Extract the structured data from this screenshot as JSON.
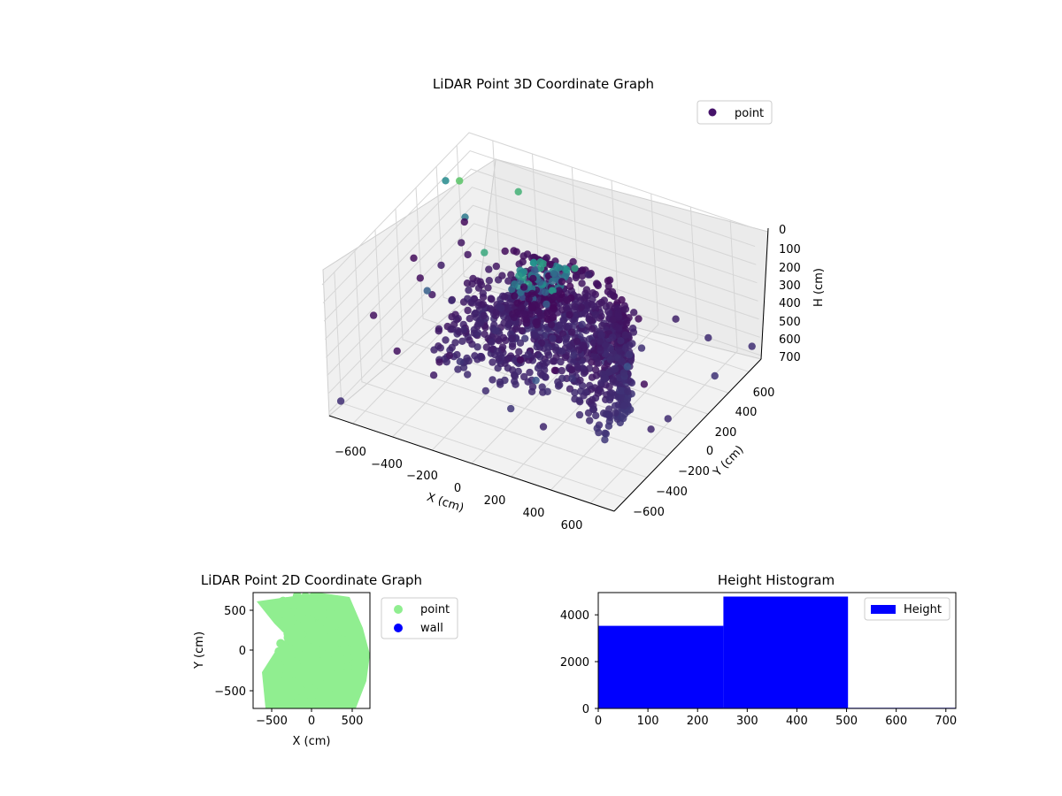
{
  "chart_data": [
    {
      "type": "scatter3d",
      "title": "LiDAR Point 3D Coordinate Graph",
      "xlabel": "X (cm)",
      "ylabel": "Y (cm)",
      "zlabel": "H (cm)",
      "xlim": [
        -720,
        720
      ],
      "ylim": [
        -720,
        720
      ],
      "zlim": [
        0,
        720
      ],
      "z_inverted": true,
      "xticks": [
        "−600",
        "−400",
        "−200",
        "0",
        "200",
        "400",
        "600"
      ],
      "yticks": [
        "−600",
        "−400",
        "−200",
        "0",
        "200",
        "400",
        "600"
      ],
      "zticks": [
        "0",
        "100",
        "200",
        "300",
        "400",
        "500",
        "600",
        "700"
      ],
      "grid": true,
      "colormap": "viridis",
      "legend": {
        "position": "top-right",
        "entries": [
          {
            "label": "point",
            "color": "#46136a"
          }
        ]
      }
    },
    {
      "type": "scatter",
      "title": "LiDAR Point 2D Coordinate Graph",
      "xlabel": "X (cm)",
      "ylabel": "Y (cm)",
      "xlim": [
        -720,
        720
      ],
      "ylim": [
        -720,
        720
      ],
      "xticks": [
        "−500",
        "0",
        "500"
      ],
      "yticks": [
        "500",
        "0",
        "−500"
      ],
      "legend": {
        "position": "right-outside",
        "entries": [
          {
            "label": "point",
            "color": "#90ee90"
          },
          {
            "label": "wall",
            "color": "#0000ff"
          }
        ]
      },
      "series": [
        {
          "name": "point",
          "color": "#90ee90"
        },
        {
          "name": "wall",
          "color": "#0000ff"
        }
      ]
    },
    {
      "type": "bar",
      "title": "Height Histogram",
      "xlabel": "",
      "ylabel": "",
      "xlim": [
        0,
        720
      ],
      "ylim": [
        0,
        4950
      ],
      "xticks": [
        "0",
        "100",
        "200",
        "300",
        "400",
        "500",
        "600",
        "700"
      ],
      "yticks": [
        "0",
        "2000",
        "4000"
      ],
      "bins": [
        {
          "from": 0,
          "to": 252,
          "count": 3530
        },
        {
          "from": 252,
          "to": 503,
          "count": 4780
        },
        {
          "from": 503,
          "to": 720,
          "count": 25
        }
      ],
      "color": "#0000ff",
      "legend": {
        "position": "top-right",
        "entries": [
          {
            "label": "Height",
            "color": "#0000ff"
          }
        ]
      }
    }
  ]
}
